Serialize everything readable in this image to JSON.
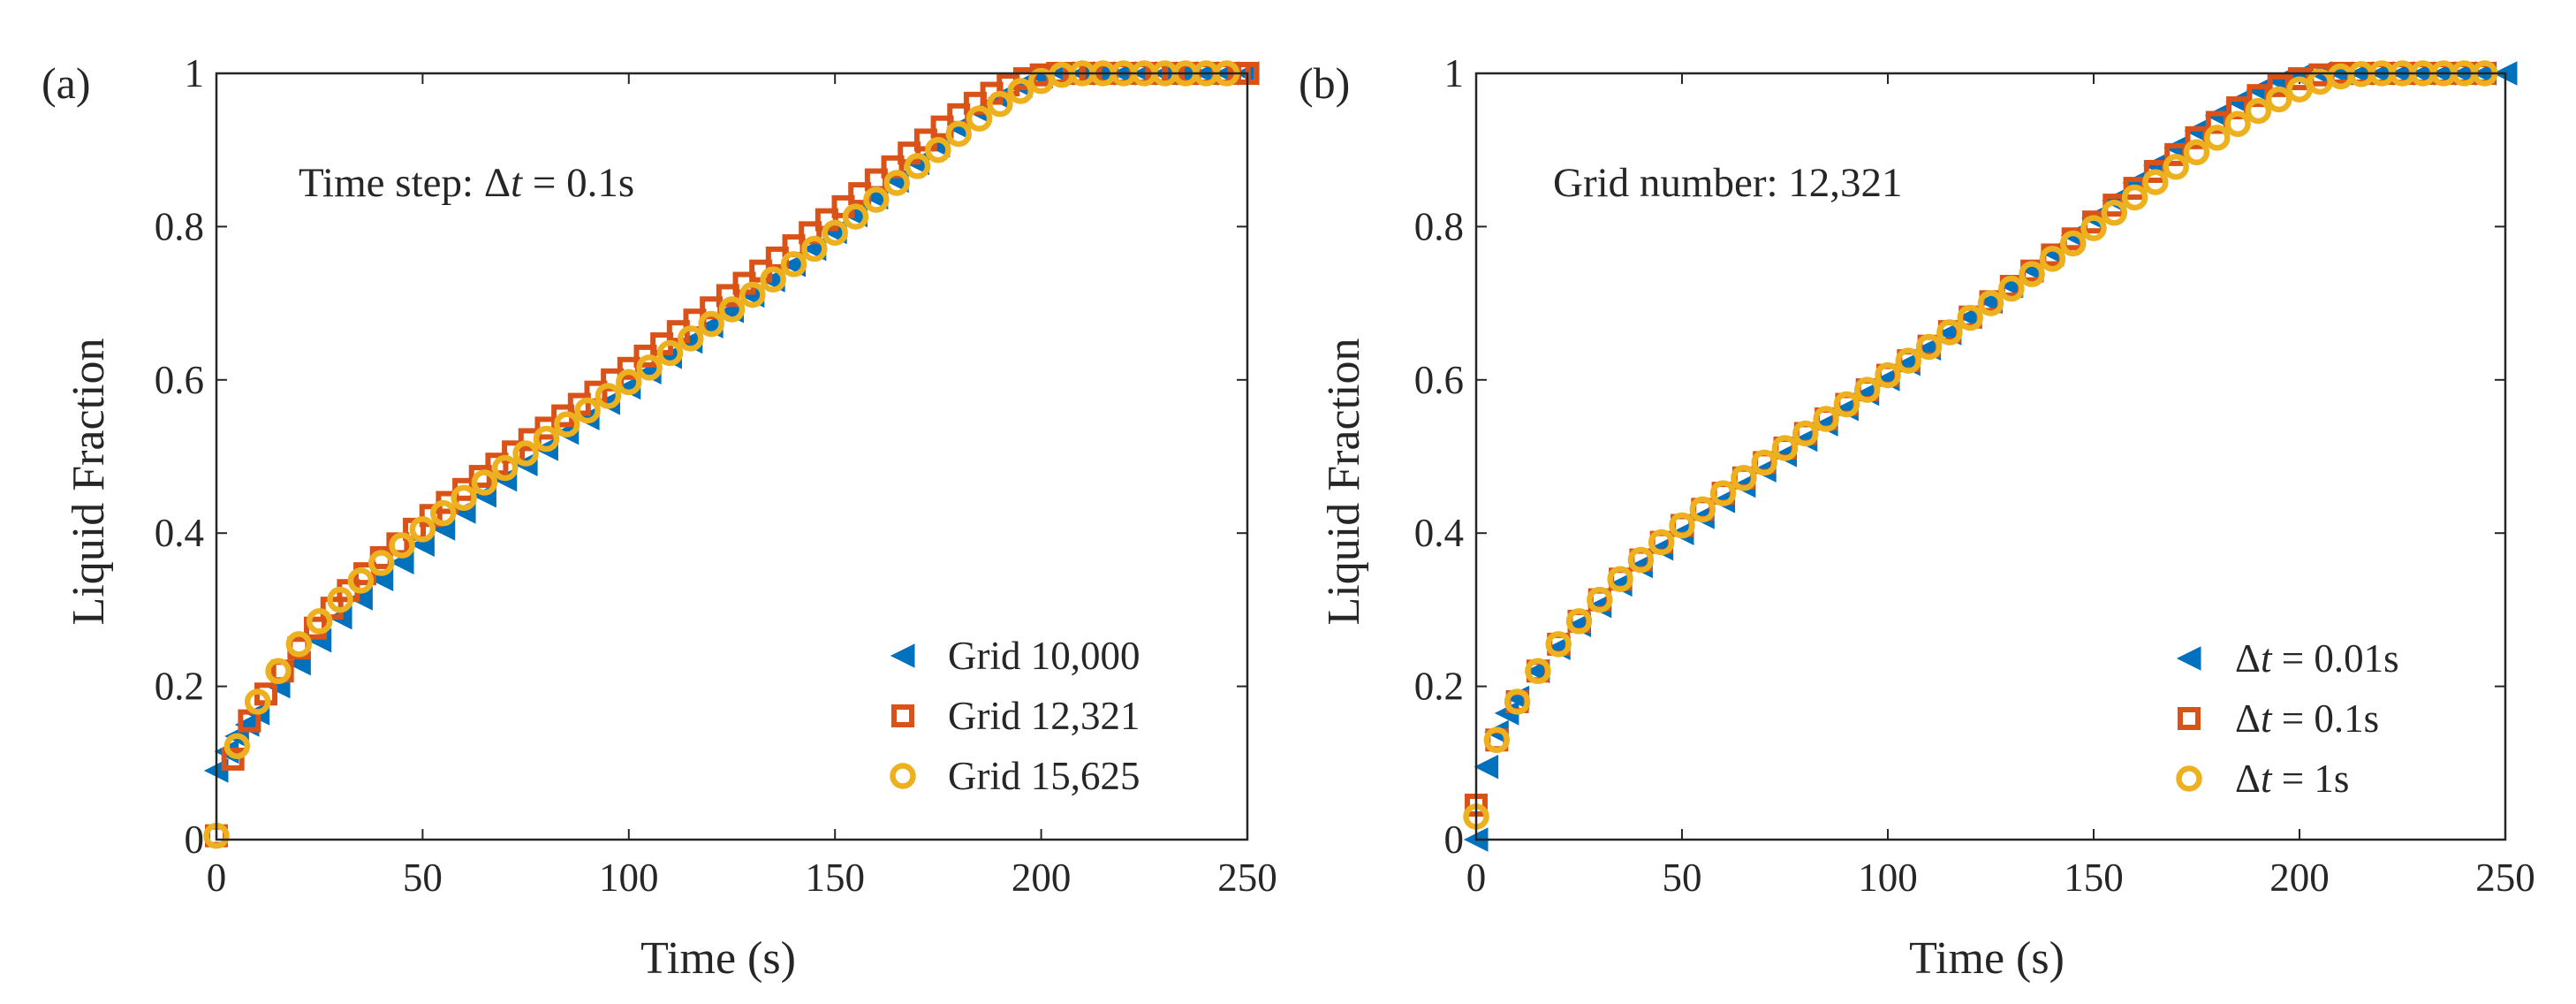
{
  "colors": {
    "blue": "#0072BD",
    "orange": "#D95319",
    "yellow": "#EDB120",
    "axis": "#262626",
    "background": "#FFFFFF"
  },
  "chart_data": [
    {
      "type": "scatter",
      "panel_label": "(a)",
      "annotation": {
        "prefix": "Time step: ",
        "symbol": "Δ",
        "var": "t",
        "suffix": " = 0.1s"
      },
      "xlabel": "Time (s)",
      "ylabel": "Liquid Fraction",
      "xlim": [
        0,
        250
      ],
      "ylim": [
        0,
        1
      ],
      "xticks": [
        0,
        50,
        100,
        150,
        200,
        250
      ],
      "xtick_labels": [
        "0",
        "50",
        "100",
        "150",
        "200",
        "250"
      ],
      "yticks": [
        0,
        0.2,
        0.4,
        0.6,
        0.8,
        1
      ],
      "ytick_labels": [
        "0",
        "0.2",
        "0.4",
        "0.6",
        "0.8",
        "1"
      ],
      "grid": false,
      "legend_position": "bottom-right",
      "series": [
        {
          "name": "Grid 10,000",
          "label": {
            "text": "Grid 10,000"
          },
          "marker": "triangle-left",
          "color": "#0072BD",
          "x": [
            0,
            2.5,
            5,
            7.5,
            10,
            15,
            20,
            25,
            30,
            35,
            40,
            45,
            50,
            55,
            60,
            65,
            70,
            75,
            80,
            85,
            90,
            95,
            100,
            105,
            110,
            115,
            120,
            125,
            130,
            135,
            140,
            145,
            150,
            155,
            160,
            165,
            170,
            175,
            180,
            185,
            190,
            195,
            200,
            205,
            210,
            215,
            220,
            225,
            230,
            235,
            240,
            245,
            250
          ],
          "y": [
            0.09,
            0.115,
            0.135,
            0.15,
            0.165,
            0.2,
            0.23,
            0.26,
            0.29,
            0.315,
            0.34,
            0.362,
            0.385,
            0.406,
            0.428,
            0.449,
            0.47,
            0.49,
            0.51,
            0.531,
            0.55,
            0.57,
            0.59,
            0.61,
            0.63,
            0.65,
            0.67,
            0.69,
            0.71,
            0.73,
            0.75,
            0.771,
            0.793,
            0.815,
            0.838,
            0.86,
            0.883,
            0.906,
            0.929,
            0.95,
            0.968,
            0.984,
            0.996,
            1.0,
            1.0,
            1.0,
            1.0,
            1.0,
            1.0,
            1.0,
            1.0,
            1.0,
            1.0
          ]
        },
        {
          "name": "Grid 12,321",
          "label": {
            "text": "Grid 12,321"
          },
          "marker": "square",
          "color": "#D95319",
          "x": [
            0,
            4,
            8,
            12,
            16,
            20,
            24,
            28,
            32,
            36,
            40,
            44,
            48,
            52,
            56,
            60,
            64,
            68,
            72,
            76,
            80,
            84,
            88,
            92,
            96,
            100,
            104,
            108,
            112,
            116,
            120,
            124,
            128,
            132,
            136,
            140,
            144,
            148,
            152,
            156,
            160,
            164,
            168,
            172,
            176,
            180,
            184,
            188,
            192,
            196,
            200,
            204,
            208,
            212,
            216,
            220,
            224,
            228,
            232,
            236,
            240,
            244,
            248,
            250
          ],
          "y": [
            0.005,
            0.105,
            0.155,
            0.19,
            0.22,
            0.25,
            0.276,
            0.302,
            0.325,
            0.347,
            0.368,
            0.386,
            0.405,
            0.423,
            0.44,
            0.457,
            0.474,
            0.49,
            0.506,
            0.522,
            0.537,
            0.553,
            0.568,
            0.584,
            0.6,
            0.615,
            0.631,
            0.647,
            0.663,
            0.678,
            0.694,
            0.71,
            0.726,
            0.742,
            0.759,
            0.775,
            0.792,
            0.809,
            0.826,
            0.843,
            0.861,
            0.878,
            0.896,
            0.913,
            0.93,
            0.946,
            0.961,
            0.974,
            0.985,
            0.993,
            0.998,
            1.0,
            1.0,
            1.0,
            1.0,
            1.0,
            1.0,
            1.0,
            1.0,
            1.0,
            1.0,
            1.0,
            1.0,
            1.0
          ]
        },
        {
          "name": "Grid 15,625",
          "label": {
            "text": "Grid 15,625"
          },
          "marker": "circle",
          "color": "#EDB120",
          "x": [
            0,
            5,
            10,
            15,
            20,
            25,
            30,
            35,
            40,
            45,
            50,
            55,
            60,
            65,
            70,
            75,
            80,
            85,
            90,
            95,
            100,
            105,
            110,
            115,
            120,
            125,
            130,
            135,
            140,
            145,
            150,
            155,
            160,
            165,
            170,
            175,
            180,
            185,
            190,
            195,
            200,
            205,
            210,
            215,
            220,
            225,
            230,
            235,
            240,
            245
          ],
          "y": [
            0.005,
            0.122,
            0.18,
            0.22,
            0.255,
            0.285,
            0.313,
            0.338,
            0.361,
            0.384,
            0.405,
            0.426,
            0.446,
            0.466,
            0.485,
            0.504,
            0.523,
            0.542,
            0.56,
            0.579,
            0.597,
            0.616,
            0.635,
            0.654,
            0.673,
            0.692,
            0.711,
            0.731,
            0.751,
            0.771,
            0.792,
            0.813,
            0.835,
            0.857,
            0.879,
            0.9,
            0.921,
            0.941,
            0.96,
            0.977,
            0.99,
            0.998,
            1.0,
            1.0,
            1.0,
            1.0,
            1.0,
            1.0,
            1.0,
            1.0
          ]
        }
      ]
    },
    {
      "type": "scatter",
      "panel_label": "(b)",
      "annotation": {
        "prefix": "Grid number: 12,321",
        "symbol": "",
        "var": "",
        "suffix": ""
      },
      "xlabel": "Time (s)",
      "ylabel": "Liquid Fraction",
      "xlim": [
        0,
        250
      ],
      "ylim": [
        0,
        1
      ],
      "xticks": [
        0,
        50,
        100,
        150,
        200,
        250
      ],
      "xtick_labels": [
        "0",
        "50",
        "100",
        "150",
        "200",
        "250"
      ],
      "yticks": [
        0,
        0.2,
        0.4,
        0.6,
        0.8,
        1
      ],
      "ytick_labels": [
        "0",
        "0.2",
        "0.4",
        "0.6",
        "0.8",
        "1"
      ],
      "grid": false,
      "legend_position": "bottom-right",
      "series": [
        {
          "name": "Δt = 0.01s",
          "label": {
            "symbol": "Δ",
            "var": "t",
            "rest": " = 0.01s"
          },
          "marker": "triangle-left",
          "color": "#0072BD",
          "x": [
            0,
            2.5,
            5,
            7.5,
            10,
            15,
            20,
            25,
            30,
            35,
            40,
            45,
            50,
            55,
            60,
            65,
            70,
            75,
            80,
            85,
            90,
            95,
            100,
            105,
            110,
            115,
            120,
            125,
            130,
            135,
            140,
            145,
            150,
            155,
            160,
            165,
            170,
            175,
            180,
            185,
            190,
            195,
            200,
            205,
            210,
            215,
            220,
            225,
            230,
            235,
            240,
            245,
            250
          ],
          "y": [
            0.0,
            0.095,
            0.14,
            0.165,
            0.185,
            0.22,
            0.25,
            0.28,
            0.305,
            0.333,
            0.357,
            0.38,
            0.4,
            0.421,
            0.442,
            0.462,
            0.482,
            0.502,
            0.522,
            0.542,
            0.562,
            0.582,
            0.601,
            0.621,
            0.641,
            0.661,
            0.682,
            0.702,
            0.723,
            0.744,
            0.766,
            0.788,
            0.811,
            0.834,
            0.857,
            0.88,
            0.903,
            0.925,
            0.945,
            0.963,
            0.978,
            0.99,
            0.997,
            1.0,
            1.0,
            1.0,
            1.0,
            1.0,
            1.0,
            1.0,
            1.0,
            1.0,
            1.0
          ]
        },
        {
          "name": "Δt = 0.1s",
          "label": {
            "symbol": "Δ",
            "var": "t",
            "rest": " = 0.1s"
          },
          "marker": "square",
          "color": "#D95319",
          "x": [
            0,
            5,
            10,
            15,
            20,
            25,
            30,
            35,
            40,
            45,
            50,
            55,
            60,
            65,
            70,
            75,
            80,
            85,
            90,
            95,
            100,
            105,
            110,
            115,
            120,
            125,
            130,
            135,
            140,
            145,
            150,
            155,
            160,
            165,
            170,
            175,
            180,
            185,
            190,
            195,
            200,
            205,
            210,
            215,
            220,
            225,
            230,
            235,
            240,
            245
          ],
          "y": [
            0.045,
            0.13,
            0.18,
            0.22,
            0.255,
            0.285,
            0.313,
            0.34,
            0.365,
            0.388,
            0.41,
            0.431,
            0.452,
            0.472,
            0.492,
            0.511,
            0.53,
            0.549,
            0.568,
            0.587,
            0.606,
            0.625,
            0.644,
            0.663,
            0.682,
            0.702,
            0.722,
            0.742,
            0.763,
            0.784,
            0.806,
            0.828,
            0.85,
            0.872,
            0.894,
            0.916,
            0.936,
            0.955,
            0.971,
            0.984,
            0.993,
            0.998,
            1.0,
            1.0,
            1.0,
            1.0,
            1.0,
            1.0,
            1.0,
            1.0
          ]
        },
        {
          "name": "Δt = 1s",
          "label": {
            "symbol": "Δ",
            "var": "t",
            "rest": " = 1s"
          },
          "marker": "circle",
          "color": "#EDB120",
          "x": [
            0,
            5,
            10,
            15,
            20,
            25,
            30,
            35,
            40,
            45,
            50,
            55,
            60,
            65,
            70,
            75,
            80,
            85,
            90,
            95,
            100,
            105,
            110,
            115,
            120,
            125,
            130,
            135,
            140,
            145,
            150,
            155,
            160,
            165,
            170,
            175,
            180,
            185,
            190,
            195,
            200,
            205,
            210,
            215,
            220,
            225,
            230,
            235,
            240,
            245
          ],
          "y": [
            0.03,
            0.13,
            0.18,
            0.22,
            0.255,
            0.285,
            0.313,
            0.34,
            0.365,
            0.388,
            0.41,
            0.431,
            0.452,
            0.472,
            0.492,
            0.511,
            0.53,
            0.549,
            0.568,
            0.587,
            0.606,
            0.625,
            0.643,
            0.662,
            0.681,
            0.7,
            0.719,
            0.738,
            0.758,
            0.778,
            0.798,
            0.818,
            0.838,
            0.858,
            0.878,
            0.897,
            0.916,
            0.934,
            0.951,
            0.966,
            0.979,
            0.989,
            0.996,
            0.999,
            1.0,
            1.0,
            1.0,
            1.0,
            1.0,
            1.0
          ]
        }
      ]
    }
  ]
}
